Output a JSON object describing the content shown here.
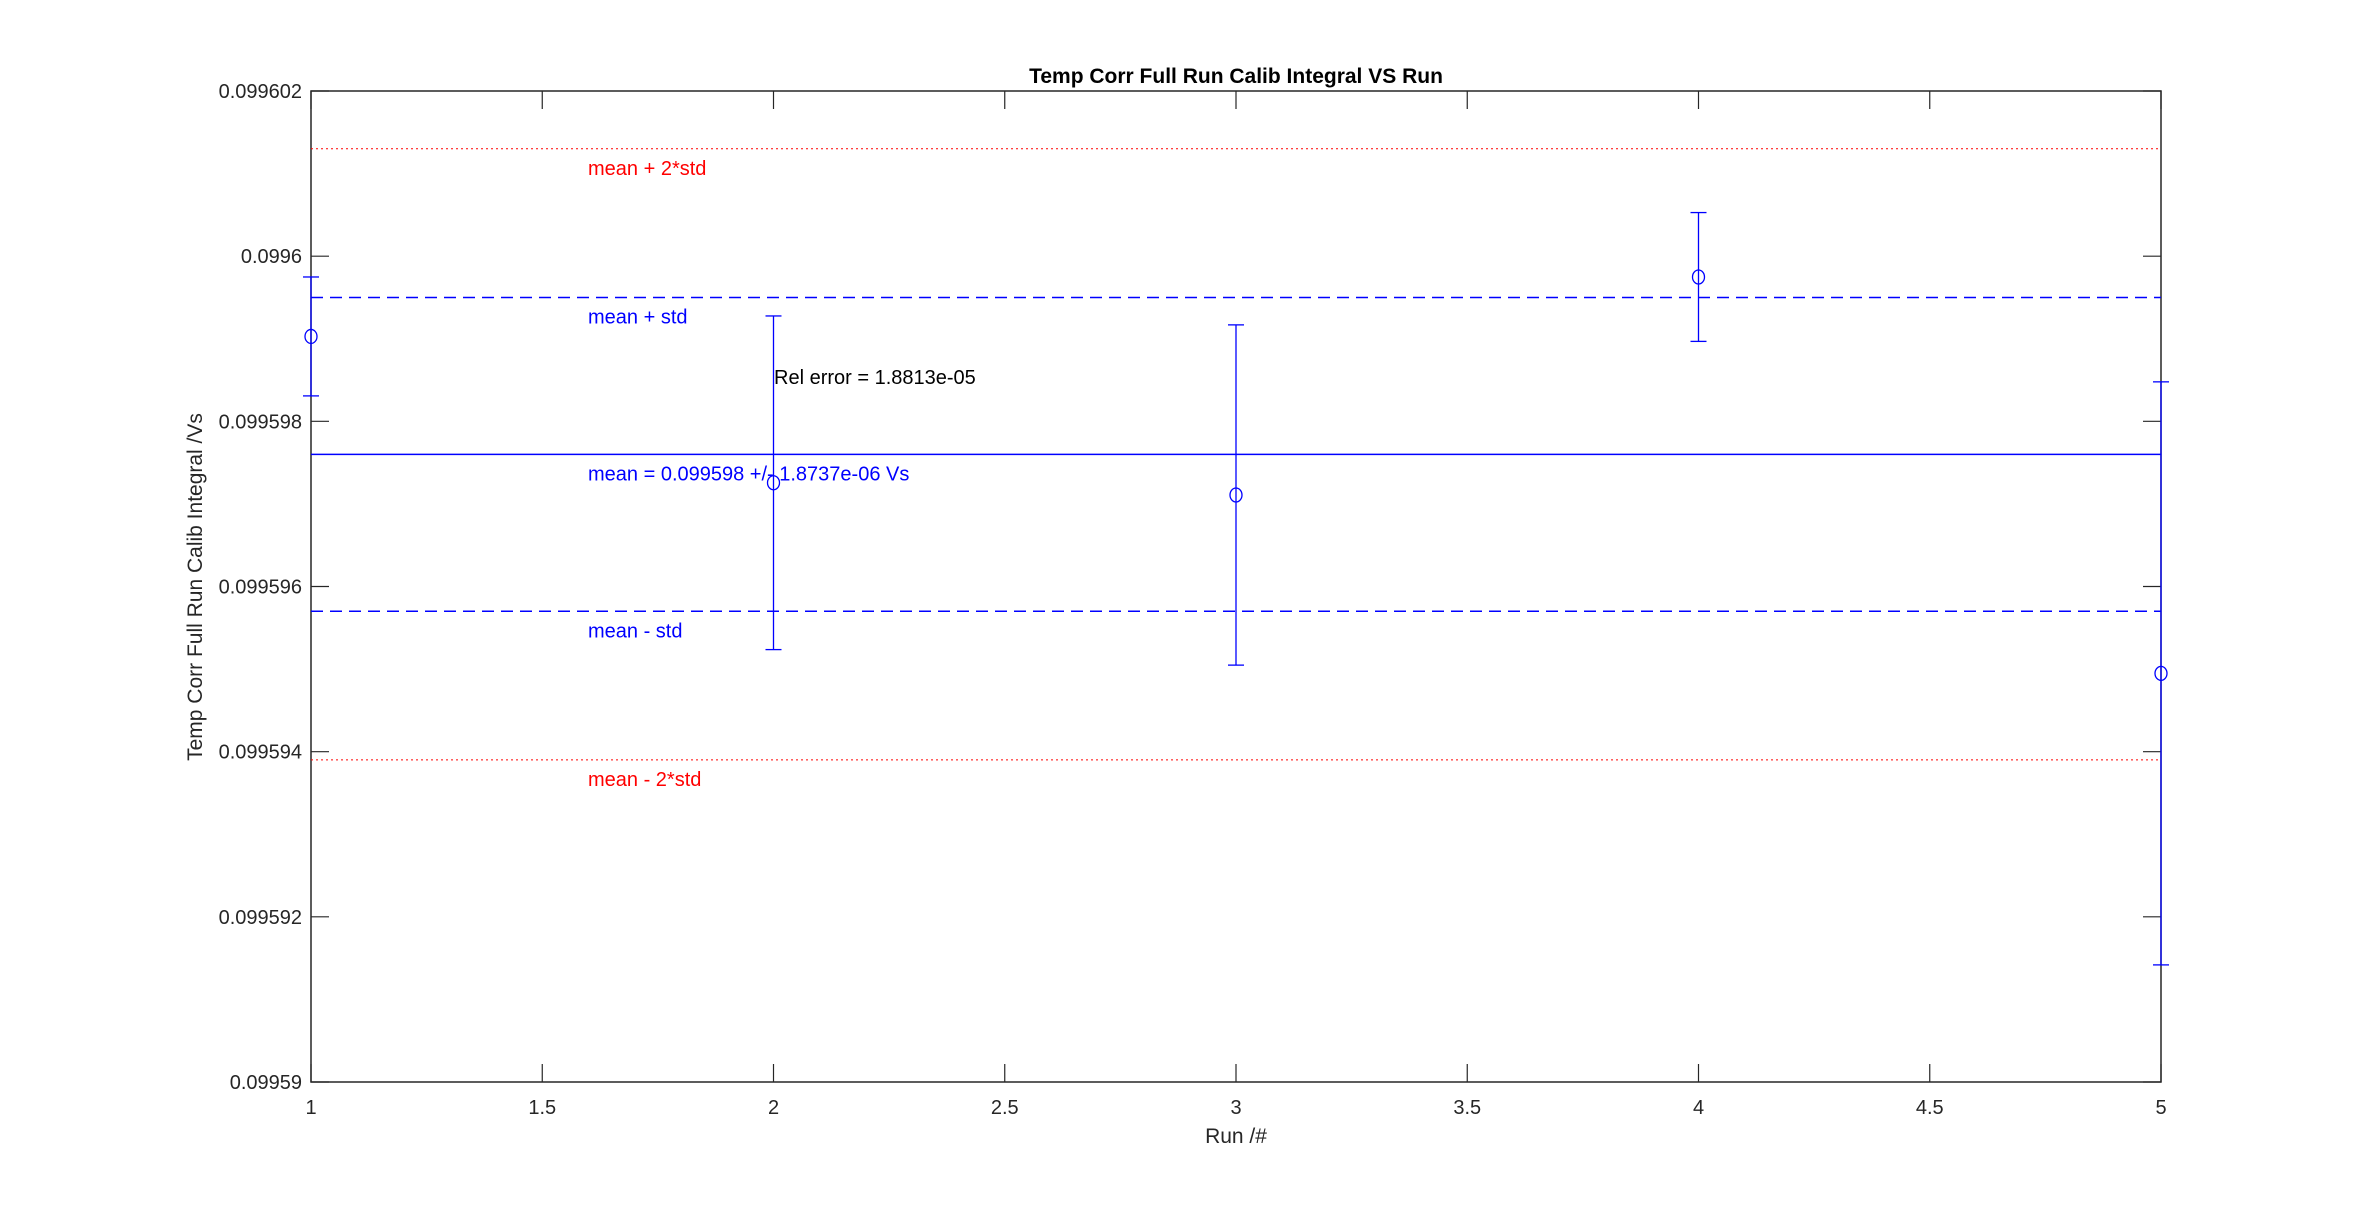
{
  "chart_data": {
    "type": "scatter",
    "title": "Temp Corr Full Run Calib Integral VS Run",
    "xlabel": "Run /#",
    "ylabel": "Temp Corr Full Run Calib Integral /Vs",
    "xlim": [
      1,
      5
    ],
    "ylim": [
      0.09959,
      0.099602
    ],
    "x_ticks": [
      "1",
      "1.5",
      "2",
      "2.5",
      "3",
      "3.5",
      "4",
      "4.5",
      "5"
    ],
    "x_tick_values": [
      1,
      1.5,
      2,
      2.5,
      3,
      3.5,
      4,
      4.5,
      5
    ],
    "y_ticks": [
      "0.09959",
      "0.099592",
      "0.099594",
      "0.099596",
      "0.099598",
      "0.0996",
      "0.099602"
    ],
    "y_tick_values": [
      0.09959,
      0.099592,
      0.099594,
      0.099596,
      0.099598,
      0.0996,
      0.099602
    ],
    "grid": false,
    "marker": "circle",
    "series_color": "#0000ff",
    "points": [
      {
        "x": 1,
        "y": 0.099599028,
        "err": 7.2e-07
      },
      {
        "x": 2,
        "y": 0.099597256,
        "err": 2.02e-06
      },
      {
        "x": 3,
        "y": 0.099597108,
        "err": 2.06e-06
      },
      {
        "x": 4,
        "y": 0.099599748,
        "err": 7.8e-07
      },
      {
        "x": 5,
        "y": 0.099594948,
        "err": 3.53e-06
      }
    ],
    "reference_lines": [
      {
        "label": "mean + 2*std",
        "y": 0.0996013,
        "style": "dotted",
        "color": "#ff0000"
      },
      {
        "label": "mean + std",
        "y": 0.0995995,
        "style": "dashed",
        "color": "#0000ff"
      },
      {
        "label": "mean = 0.099598 +/- 1.8737e-06 Vs",
        "y": 0.0995976,
        "style": "solid",
        "color": "#0000ff"
      },
      {
        "label": "mean - std",
        "y": 0.0995957,
        "style": "dashed",
        "color": "#0000ff"
      },
      {
        "label": "mean - 2*std",
        "y": 0.0995939,
        "style": "dotted",
        "color": "#ff0000"
      }
    ],
    "annotation": "Rel error = 1.8813e-05"
  }
}
